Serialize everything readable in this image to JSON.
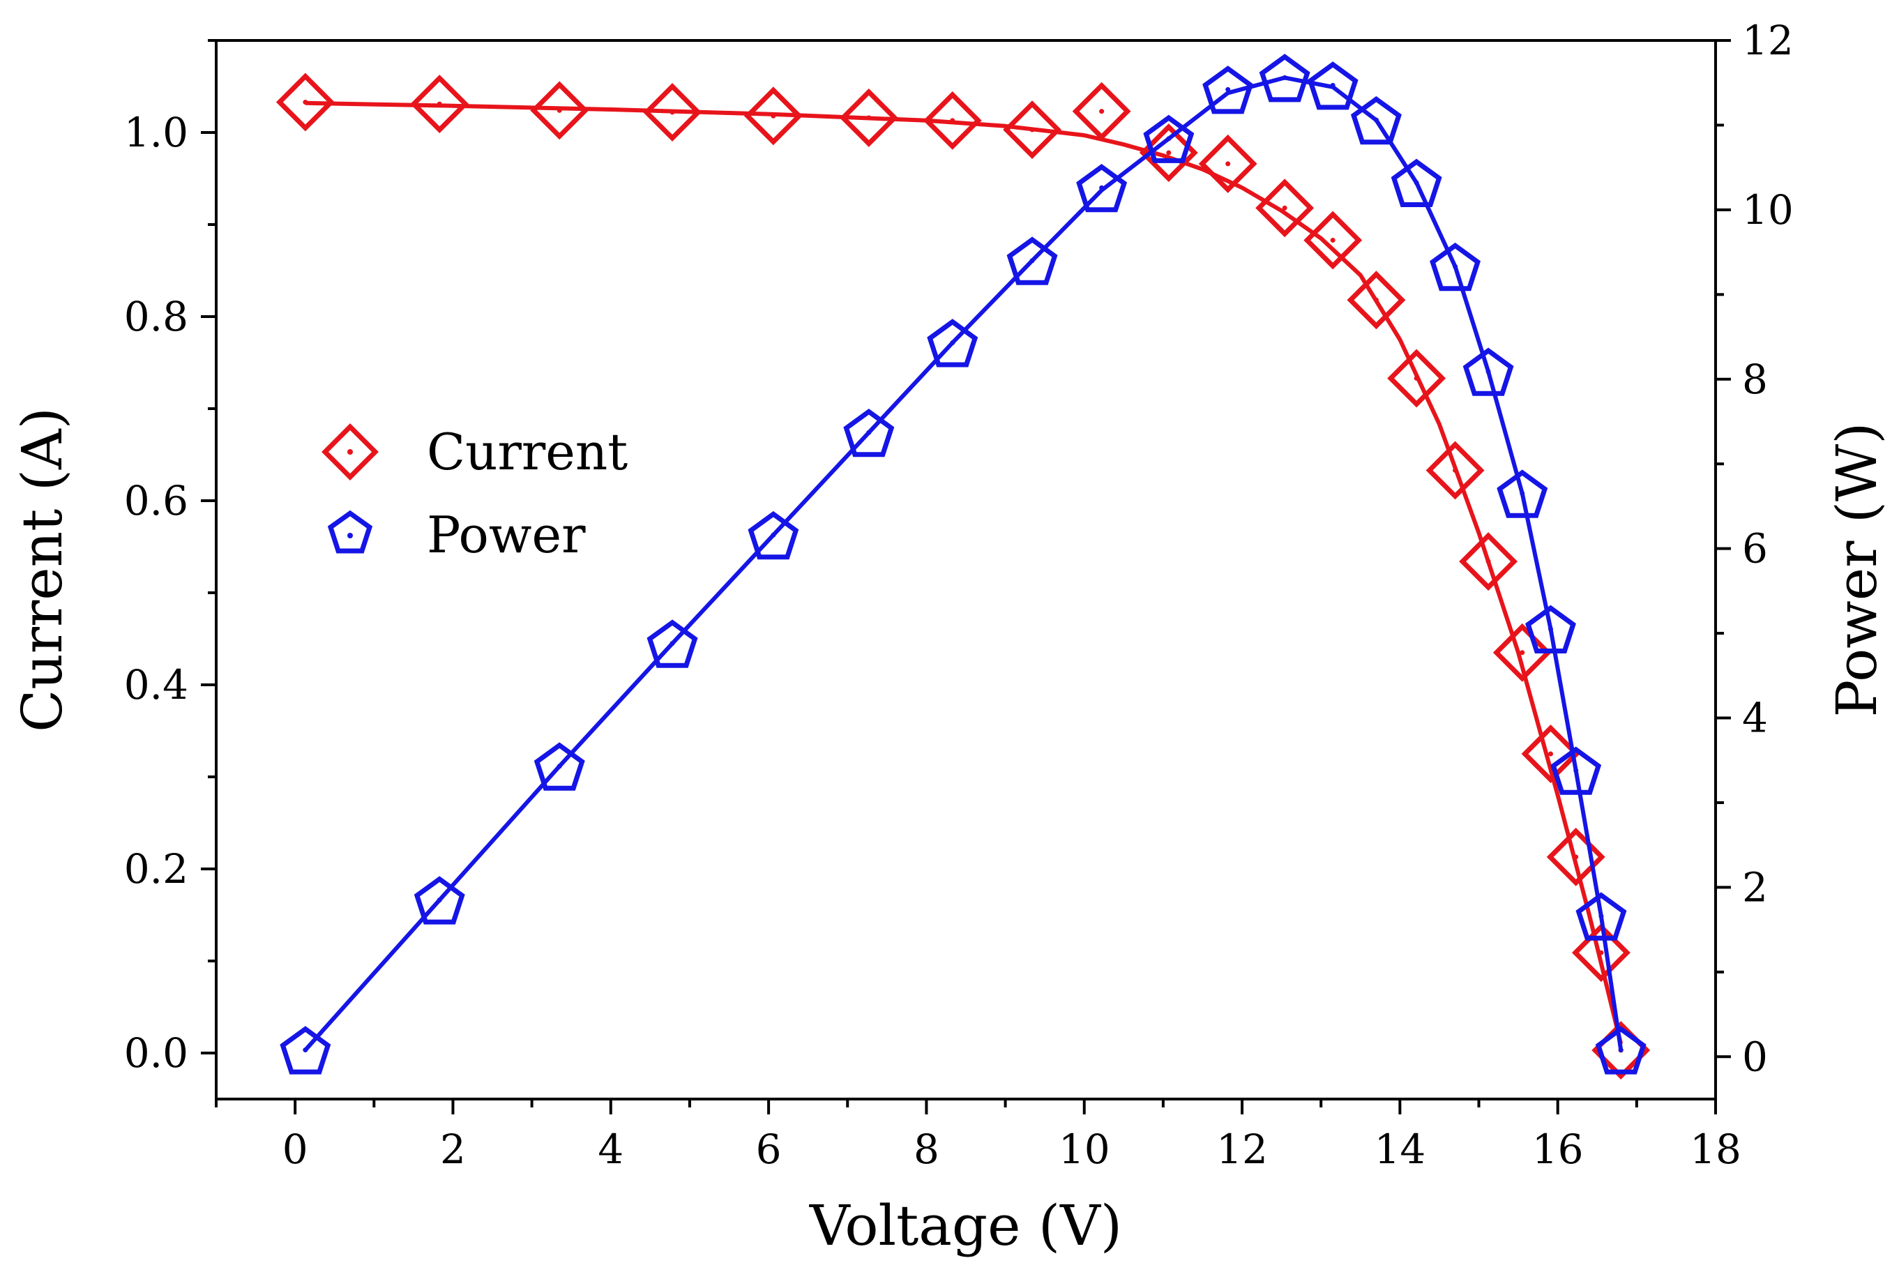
{
  "chart_data": {
    "type": "line",
    "title": "",
    "xlabel": "Voltage (V)",
    "ylabel_left": "Current (A)",
    "ylabel_right": "Power (W)",
    "xlim": [
      -1,
      18
    ],
    "ylim_left": [
      -0.05,
      1.1
    ],
    "ylim_right": [
      -0.5,
      12
    ],
    "xticks": [
      "0",
      "2",
      "4",
      "6",
      "8",
      "10",
      "12",
      "14",
      "16",
      "18"
    ],
    "yticks_left": [
      "0.0",
      "0.2",
      "0.4",
      "0.6",
      "0.8",
      "1.0"
    ],
    "yticks_right": [
      "0",
      "2",
      "4",
      "6",
      "8",
      "10",
      "12"
    ],
    "grid": false,
    "legend_position": "center-left",
    "series": [
      {
        "name": "Current",
        "axis": "left",
        "marker": "diamond",
        "color": "#e8141b",
        "x": [
          0.13,
          1.83,
          3.35,
          4.78,
          6.06,
          7.27,
          8.33,
          9.34,
          10.22,
          11.07,
          11.82,
          12.54,
          13.15,
          13.7,
          14.21,
          14.7,
          15.12,
          15.55,
          15.91,
          16.23,
          16.55,
          16.8
        ],
        "values": [
          1.033,
          1.031,
          1.024,
          1.022,
          1.018,
          1.016,
          1.013,
          1.003,
          1.023,
          0.978,
          0.966,
          0.918,
          0.883,
          0.818,
          0.733,
          0.633,
          0.534,
          0.435,
          0.325,
          0.213,
          0.109,
          0.003
        ],
        "fit_x": [
          0.13,
          2,
          4,
          6,
          8,
          9,
          10,
          10.5,
          11,
          11.5,
          12,
          12.5,
          13,
          13.5,
          14,
          14.5,
          15,
          15.5,
          16,
          16.4,
          16.8
        ],
        "fit_y": [
          1.032,
          1.029,
          1.025,
          1.02,
          1.013,
          1.007,
          0.997,
          0.987,
          0.975,
          0.96,
          0.94,
          0.915,
          0.885,
          0.845,
          0.775,
          0.683,
          0.565,
          0.435,
          0.28,
          0.15,
          0.01
        ]
      },
      {
        "name": "Power",
        "axis": "right",
        "marker": "pentagon",
        "color": "#1515e6",
        "x": [
          0.13,
          1.83,
          3.35,
          4.78,
          6.06,
          7.27,
          8.33,
          9.34,
          10.22,
          11.07,
          11.82,
          12.54,
          13.15,
          13.7,
          14.21,
          14.7,
          15.12,
          15.55,
          15.91,
          16.23,
          16.55,
          16.8
        ],
        "values": [
          0.08,
          1.85,
          3.43,
          4.88,
          6.16,
          7.37,
          8.43,
          9.4,
          10.26,
          10.84,
          11.42,
          11.56,
          11.47,
          11.06,
          10.32,
          9.33,
          8.09,
          6.65,
          5.05,
          3.38,
          1.66,
          0.08
        ],
        "fit_x": [
          0.13,
          1.83,
          3.35,
          4.78,
          6.06,
          7.27,
          8.33,
          9.34,
          10.22,
          11.07,
          11.82,
          12.54,
          13.15,
          13.7,
          14.21,
          14.7,
          15.12,
          15.55,
          15.91,
          16.23,
          16.55,
          16.8
        ],
        "fit_y": [
          0.08,
          1.85,
          3.43,
          4.88,
          6.16,
          7.37,
          8.43,
          9.4,
          10.23,
          10.84,
          11.38,
          11.56,
          11.45,
          11.06,
          10.32,
          9.33,
          8.09,
          6.65,
          5.05,
          3.38,
          1.66,
          0.08
        ]
      }
    ]
  }
}
